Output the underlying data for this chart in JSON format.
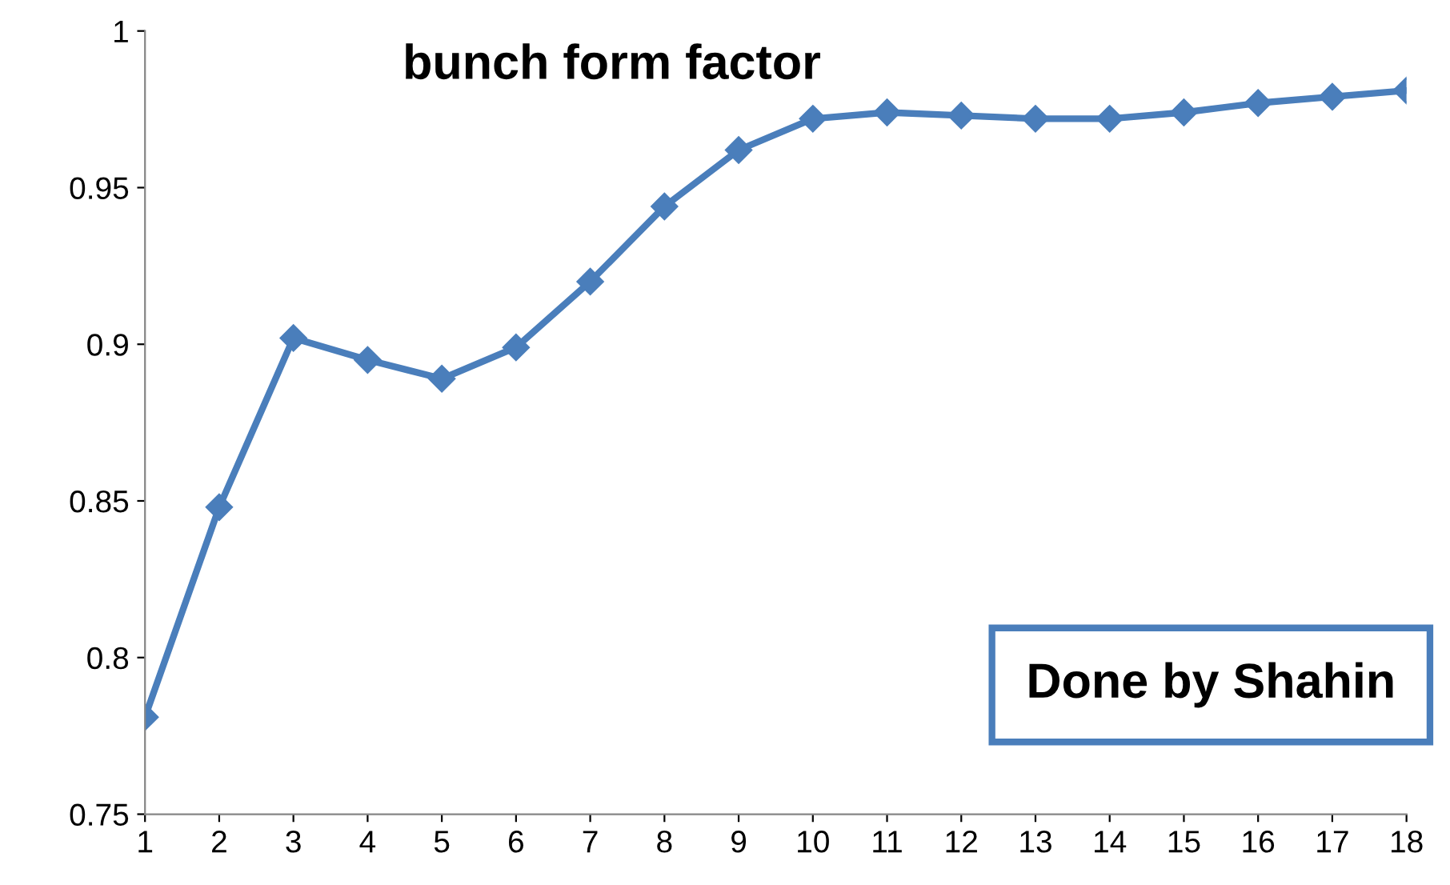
{
  "chart_data": {
    "type": "line",
    "title": "bunch form factor",
    "categories": [
      "1",
      "2",
      "3",
      "4",
      "5",
      "6",
      "7",
      "8",
      "9",
      "10",
      "11",
      "12",
      "13",
      "14",
      "15",
      "16",
      "17",
      "18"
    ],
    "series": [
      {
        "color": "#4a7ebb",
        "values": [
          0.781,
          0.848,
          0.902,
          0.895,
          0.889,
          0.899,
          0.92,
          0.944,
          0.962,
          0.972,
          0.974,
          0.973,
          0.972,
          0.972,
          0.974,
          0.977,
          0.979,
          0.981
        ]
      }
    ],
    "ylim": [
      0.75,
      1
    ],
    "yticks": [
      0.75,
      0.8,
      0.85,
      0.9,
      0.95,
      1
    ],
    "marker": "diamond",
    "line_style": "solid",
    "grid": false,
    "annotations": [
      "Done by Shahin"
    ]
  }
}
